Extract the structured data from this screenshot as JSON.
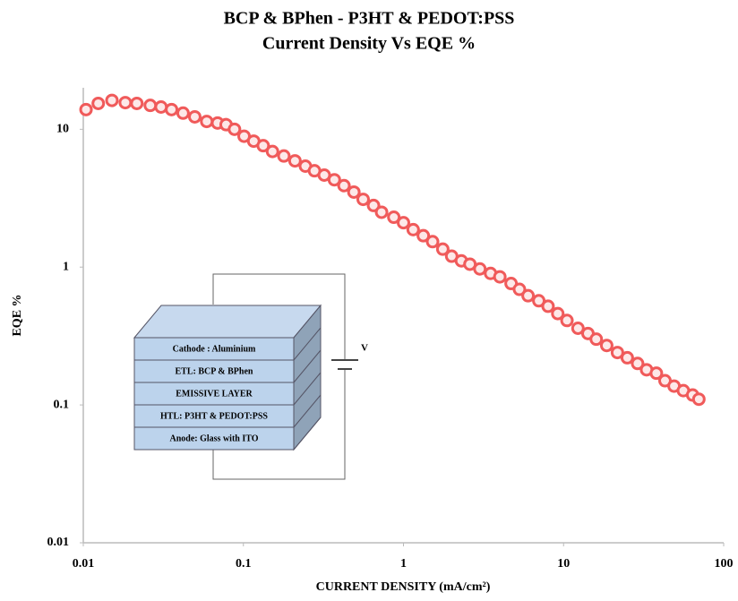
{
  "chart_data": {
    "type": "scatter",
    "title": "BCP & BPhen - P3HT & PEDOT:PSS",
    "subtitle": "Current Density Vs EQE %",
    "x_label": "CURRENT DENSITY (mA/cm²)",
    "y_label": "EQE %",
    "xscale": "log",
    "yscale": "log",
    "xlim": [
      0.01,
      100
    ],
    "ylim": [
      0.01,
      20
    ],
    "xticks": [
      0.01,
      0.1,
      1,
      10,
      100
    ],
    "yticks": [
      0.01,
      0.1,
      1,
      10
    ],
    "grid": false,
    "color": "#f05a5a",
    "x": [
      0.0104,
      0.0124,
      0.0151,
      0.0183,
      0.0216,
      0.0262,
      0.0306,
      0.0356,
      0.042,
      0.0497,
      0.059,
      0.069,
      0.078,
      0.088,
      0.101,
      0.116,
      0.133,
      0.152,
      0.179,
      0.21,
      0.244,
      0.278,
      0.32,
      0.37,
      0.425,
      0.49,
      0.56,
      0.65,
      0.73,
      0.87,
      1.0,
      1.15,
      1.33,
      1.52,
      1.76,
      2.0,
      2.3,
      2.6,
      3.0,
      3.5,
      4.0,
      4.7,
      5.3,
      6.0,
      7.0,
      8.0,
      9.2,
      10.5,
      12.3,
      14.2,
      16.0,
      18.6,
      21.7,
      25,
      29,
      33,
      38,
      43,
      49,
      56,
      64,
      70
    ],
    "values": [
      13.9,
      15.4,
      16.2,
      15.6,
      15.4,
      14.9,
      14.5,
      13.9,
      13.1,
      12.3,
      11.4,
      11.1,
      10.8,
      10.0,
      8.9,
      8.2,
      7.6,
      6.9,
      6.4,
      5.9,
      5.4,
      5.0,
      4.65,
      4.3,
      3.9,
      3.5,
      3.1,
      2.8,
      2.5,
      2.3,
      2.1,
      1.87,
      1.69,
      1.53,
      1.35,
      1.2,
      1.11,
      1.05,
      0.97,
      0.9,
      0.85,
      0.76,
      0.69,
      0.62,
      0.57,
      0.52,
      0.46,
      0.41,
      0.36,
      0.33,
      0.3,
      0.27,
      0.24,
      0.22,
      0.2,
      0.18,
      0.17,
      0.15,
      0.137,
      0.127,
      0.118,
      0.11
    ],
    "device_layers": [
      "Cathode : Aluminium",
      "ETL: BCP & BPhen",
      "EMISSIVE LAYER",
      "HTL: P3HT & PEDOT:PSS",
      "Anode: Glass with ITO"
    ],
    "voltage_label": "V"
  }
}
